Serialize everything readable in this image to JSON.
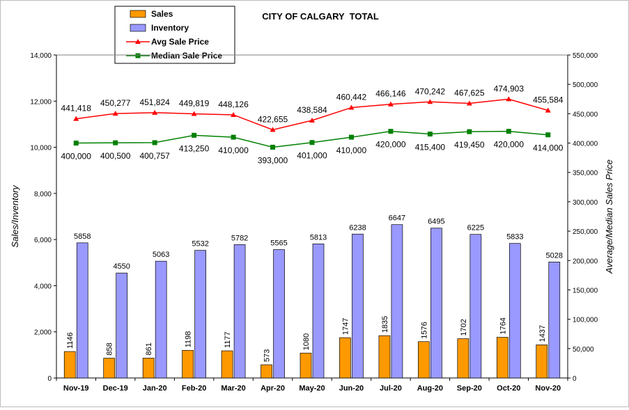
{
  "chart_data": {
    "type": "bar",
    "title": "CITY OF CALGARY  TOTAL",
    "ylabel": "Sales/Inventory",
    "y2label": "Average/Median Sales Price",
    "ylim": [
      0,
      14000
    ],
    "y2lim": [
      0,
      550000
    ],
    "yticks": [
      "0",
      "2,000",
      "4,000",
      "6,000",
      "8,000",
      "10,000",
      "12,000",
      "14,000"
    ],
    "y2ticks": [
      "0",
      "50,000",
      "100,000",
      "150,000",
      "200,000",
      "250,000",
      "300,000",
      "350,000",
      "400,000",
      "450,000",
      "500,000",
      "550,000"
    ],
    "grid": false,
    "legend": "top-left",
    "categories": [
      "Nov-19",
      "Dec-19",
      "Jan-20",
      "Feb-20",
      "Mar-20",
      "Apr-20",
      "May-20",
      "Jun-20",
      "Jul-20",
      "Aug-20",
      "Sep-20",
      "Oct-20",
      "Nov-20"
    ],
    "series": [
      {
        "name": "Sales",
        "type": "bar",
        "axis": "left",
        "color": "#ff9900",
        "values": [
          1146,
          858,
          861,
          1198,
          1177,
          573,
          1080,
          1747,
          1835,
          1576,
          1702,
          1764,
          1437
        ],
        "labels": [
          "1146",
          "858",
          "861",
          "1198",
          "1177",
          "573",
          "1080",
          "1747",
          "1835",
          "1576",
          "1702",
          "1764",
          "1437"
        ]
      },
      {
        "name": "Inventory",
        "type": "bar",
        "axis": "left",
        "color": "#9999ff",
        "values": [
          5858,
          4550,
          5063,
          5532,
          5782,
          5565,
          5813,
          6238,
          6647,
          6495,
          6225,
          5833,
          5028
        ],
        "labels": [
          "5858",
          "4550",
          "5063",
          "5532",
          "5782",
          "5565",
          "5813",
          "6238",
          "6647",
          "6495",
          "6225",
          "5833",
          "5028"
        ]
      },
      {
        "name": "Avg Sale Price",
        "type": "line",
        "axis": "right",
        "color": "#ff0000",
        "marker": "triangle",
        "values": [
          441418,
          450277,
          451824,
          449819,
          448126,
          422655,
          438584,
          460442,
          466146,
          470242,
          467625,
          474903,
          455584
        ],
        "labels": [
          "441,418",
          "450,277",
          "451,824",
          "449,819",
          "448,126",
          "422,655",
          "438,584",
          "460,442",
          "466,146",
          "470,242",
          "467,625",
          "474,903",
          "455,584"
        ]
      },
      {
        "name": "Median Sale Price",
        "type": "line",
        "axis": "right",
        "color": "#008000",
        "marker": "square",
        "values": [
          400000,
          400500,
          400757,
          413250,
          410000,
          393000,
          401000,
          410000,
          420000,
          415400,
          419450,
          420000,
          414000
        ],
        "labels": [
          "400,000",
          "400,500",
          "400,757",
          "413,250",
          "410,000",
          "393,000",
          "401,000",
          "410,000",
          "420,000",
          "415,400",
          "419,450",
          "420,000",
          "414,000"
        ]
      }
    ]
  }
}
